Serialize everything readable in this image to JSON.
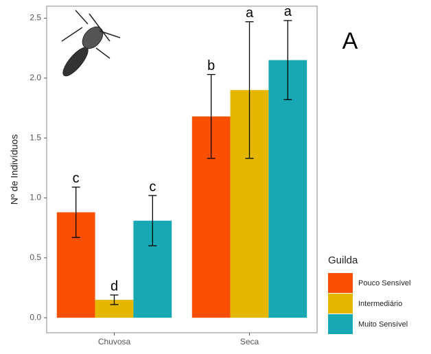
{
  "chart_data": {
    "type": "bar",
    "y_label": "Nº de Indivíduos",
    "annotation": "A",
    "categories": [
      "Chuvosa",
      "Seca"
    ],
    "legend_title": "Guilda",
    "series": [
      {
        "name": "Pouco Sensível",
        "color": "#f85000",
        "values": [
          0.88,
          1.68
        ],
        "errors": [
          0.21,
          0.35
        ],
        "labels": [
          "c",
          "b"
        ]
      },
      {
        "name": "Intermediário",
        "color": "#e5b700",
        "values": [
          0.15,
          1.9
        ],
        "errors": [
          0.04,
          0.57
        ],
        "labels": [
          "d",
          "a"
        ]
      },
      {
        "name": "Muito Sensível",
        "color": "#17a8b4",
        "values": [
          0.81,
          2.15
        ],
        "errors": [
          0.21,
          0.33
        ],
        "labels": [
          "c",
          "a"
        ]
      }
    ],
    "ylim": [
      -0.125,
      2.6
    ],
    "yticks": [
      {
        "value": 0,
        "label": "0.0"
      },
      0.5,
      {
        "value": 1,
        "label": "1.0"
      },
      1.5,
      {
        "value": 2,
        "label": "2.0"
      },
      2.5
    ],
    "grid": false
  }
}
